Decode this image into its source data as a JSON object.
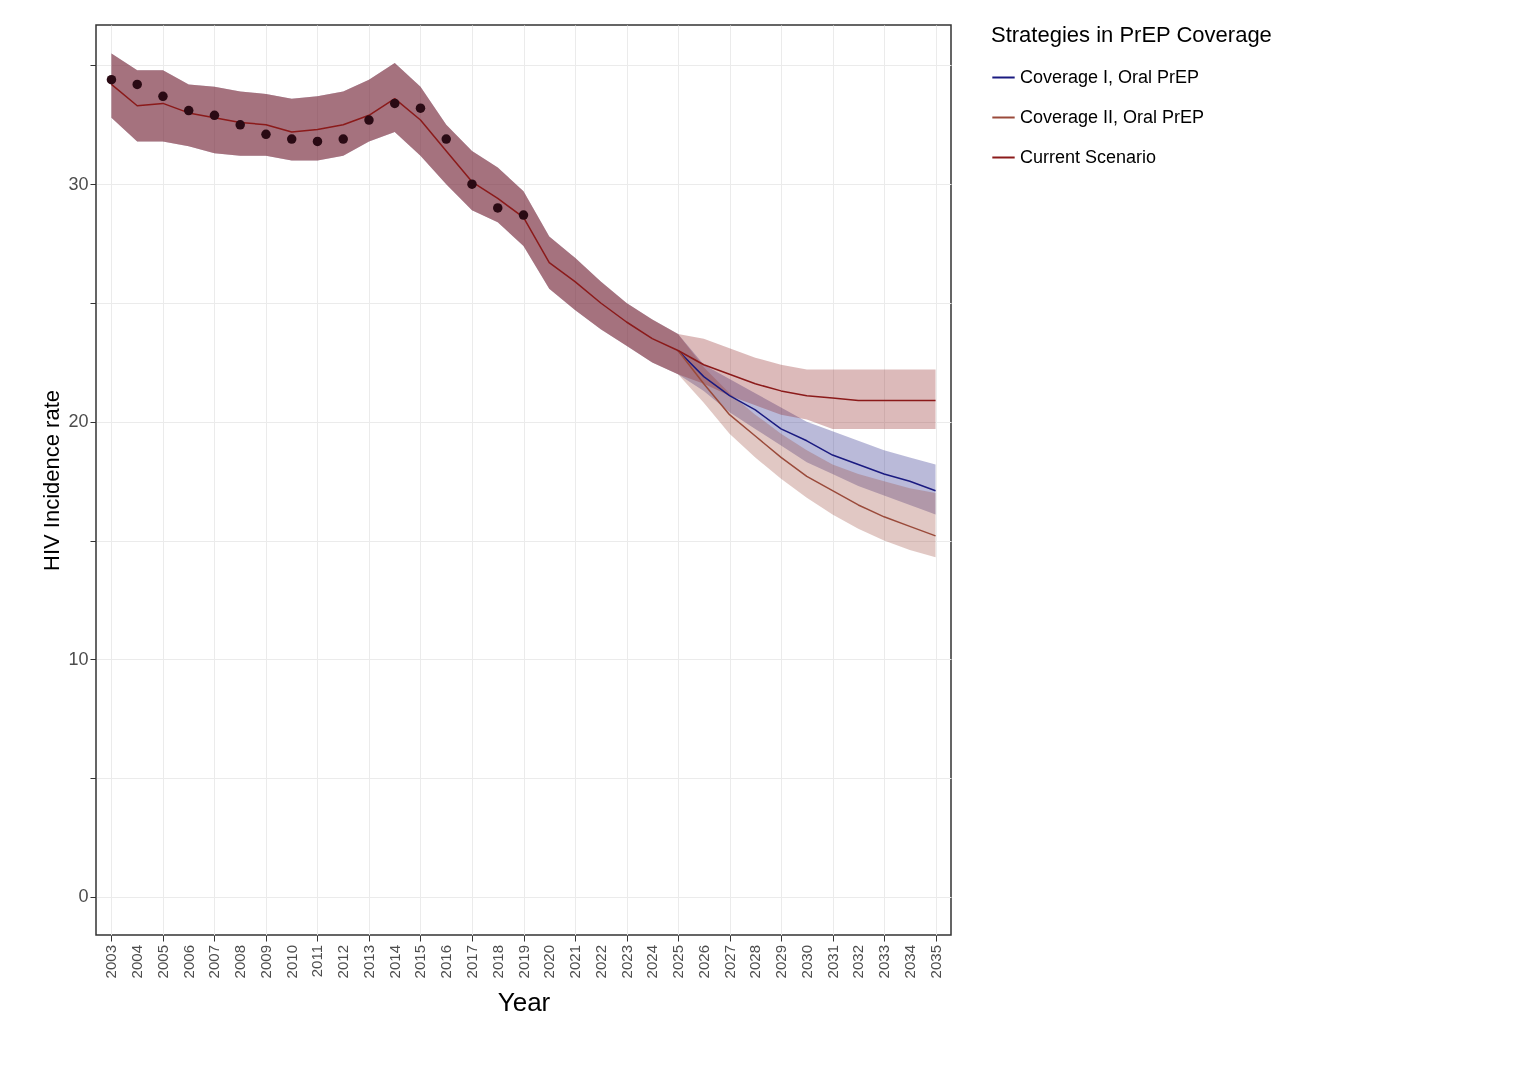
{
  "chart_data": {
    "type": "line",
    "xlabel": "Year",
    "ylabel": "HIV Incidence rate",
    "legend_title": "Strategies in PrEP Coverage",
    "legend": "right",
    "grid": true,
    "marker": "none",
    "line_style": "solid",
    "x": [
      2003,
      2004,
      2005,
      2006,
      2007,
      2008,
      2009,
      2010,
      2011,
      2012,
      2013,
      2014,
      2015,
      2016,
      2017,
      2018,
      2019,
      2020,
      2021,
      2022,
      2023,
      2024,
      2025,
      2026,
      2027,
      2028,
      2029,
      2030,
      2031,
      2032,
      2033,
      2034,
      2035
    ],
    "xlim": [
      2002.4,
      2035.6
    ],
    "ylim": [
      -1.6,
      36.7
    ],
    "xticks": [
      2003,
      2004,
      2005,
      2006,
      2007,
      2008,
      2009,
      2010,
      2011,
      2012,
      2013,
      2014,
      2015,
      2016,
      2017,
      2018,
      2019,
      2020,
      2021,
      2022,
      2023,
      2024,
      2025,
      2026,
      2027,
      2028,
      2029,
      2030,
      2031,
      2032,
      2033,
      2034,
      2035
    ],
    "yticks": [
      0,
      {
        "value": 5,
        "label": null
      },
      10,
      {
        "value": 15,
        "label": null
      },
      20,
      {
        "value": 25,
        "label": null
      },
      30,
      {
        "value": 35,
        "label": null
      }
    ],
    "series": [
      {
        "name": "Coverage I, Oral PrEP",
        "color": "#1a1a80",
        "values": [
          null,
          null,
          null,
          null,
          null,
          null,
          null,
          null,
          null,
          null,
          null,
          null,
          null,
          null,
          null,
          null,
          null,
          null,
          null,
          null,
          null,
          null,
          23.0,
          21.9,
          21.1,
          20.5,
          19.7,
          19.2,
          18.6,
          18.2,
          17.8,
          17.5,
          17.1
        ],
        "upper": [
          35.5,
          34.8,
          34.8,
          34.2,
          34.1,
          33.9,
          33.8,
          33.6,
          33.7,
          33.9,
          34.4,
          35.1,
          34.1,
          32.5,
          31.4,
          30.7,
          29.7,
          27.8,
          26.9,
          25.9,
          25.0,
          24.3,
          23.7,
          22.4,
          21.8,
          21.2,
          20.6,
          20.0,
          19.6,
          19.2,
          18.8,
          18.5,
          18.2
        ],
        "lower": [
          32.8,
          31.8,
          31.8,
          31.6,
          31.3,
          31.2,
          31.2,
          31.0,
          31.0,
          31.2,
          31.8,
          32.2,
          31.2,
          30.0,
          28.9,
          28.4,
          27.4,
          25.6,
          24.7,
          23.9,
          23.2,
          22.5,
          22.0,
          21.3,
          20.4,
          19.7,
          19.0,
          18.3,
          17.8,
          17.3,
          16.9,
          16.5,
          16.1
        ]
      },
      {
        "name": "Coverage II, Oral PrEP",
        "color": "#9a4a3a",
        "values": [
          null,
          null,
          null,
          null,
          null,
          null,
          null,
          null,
          null,
          null,
          null,
          null,
          null,
          null,
          null,
          null,
          null,
          null,
          null,
          null,
          null,
          null,
          23.0,
          21.6,
          20.3,
          19.4,
          18.5,
          17.7,
          17.1,
          16.5,
          16.0,
          15.6,
          15.2
        ],
        "upper": [
          35.5,
          34.8,
          34.8,
          34.2,
          34.1,
          33.9,
          33.8,
          33.6,
          33.7,
          33.9,
          34.4,
          35.1,
          34.1,
          32.5,
          31.4,
          30.7,
          29.7,
          27.8,
          26.9,
          25.9,
          25.0,
          24.3,
          23.7,
          22.3,
          21.2,
          20.3,
          19.5,
          18.8,
          18.2,
          17.8,
          17.5,
          17.2,
          17.0
        ],
        "lower": [
          32.8,
          31.8,
          31.8,
          31.6,
          31.3,
          31.2,
          31.2,
          31.0,
          31.0,
          31.2,
          31.8,
          32.2,
          31.2,
          30.0,
          28.9,
          28.4,
          27.4,
          25.6,
          24.7,
          23.9,
          23.2,
          22.5,
          22.0,
          20.8,
          19.5,
          18.5,
          17.6,
          16.8,
          16.1,
          15.5,
          15.0,
          14.6,
          14.3
        ]
      },
      {
        "name": "Current Scenario",
        "color": "#8b1a1a",
        "values": [
          34.2,
          33.3,
          33.4,
          33.0,
          32.8,
          32.6,
          32.5,
          32.2,
          32.3,
          32.5,
          32.9,
          33.6,
          32.7,
          31.4,
          30.1,
          29.4,
          28.6,
          26.7,
          25.9,
          25.0,
          24.2,
          23.5,
          23.0,
          22.4,
          22.0,
          21.6,
          21.3,
          21.1,
          21.0,
          20.9,
          20.9,
          20.9,
          20.9
        ],
        "upper": [
          35.5,
          34.8,
          34.8,
          34.2,
          34.1,
          33.9,
          33.8,
          33.6,
          33.7,
          33.9,
          34.4,
          35.1,
          34.1,
          32.5,
          31.4,
          30.7,
          29.7,
          27.8,
          26.9,
          25.9,
          25.0,
          24.3,
          23.7,
          23.5,
          23.1,
          22.7,
          22.4,
          22.2,
          22.2,
          22.2,
          22.2,
          22.2,
          22.2
        ],
        "lower": [
          32.8,
          31.8,
          31.8,
          31.6,
          31.3,
          31.2,
          31.2,
          31.0,
          31.0,
          31.2,
          31.8,
          32.2,
          31.2,
          30.0,
          28.9,
          28.4,
          27.4,
          25.6,
          24.7,
          23.9,
          23.2,
          22.5,
          22.0,
          21.6,
          21.1,
          20.7,
          20.3,
          20.1,
          19.7,
          19.7,
          19.7,
          19.7,
          19.7
        ]
      },
      {
        "type": "scatter",
        "color": "#2a0a14",
        "marker": "circle",
        "x": [
          2003,
          2004,
          2005,
          2006,
          2007,
          2008,
          2009,
          2010,
          2011,
          2012,
          2013,
          2014,
          2015,
          2016,
          2017,
          2018,
          2019
        ],
        "values": [
          34.4,
          34.2,
          33.7,
          33.1,
          32.9,
          32.5,
          32.1,
          31.9,
          31.8,
          31.9,
          32.7,
          33.4,
          33.2,
          31.9,
          30.0,
          29.0,
          28.7
        ]
      }
    ]
  }
}
